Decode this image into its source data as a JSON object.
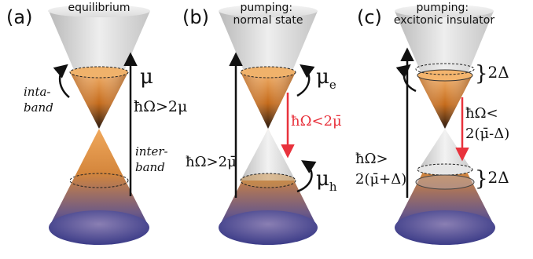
{
  "colors": {
    "upper_cone": "#d6d6d6",
    "lower_cone_orange": "#e39a48",
    "lower_cone_violet": "#4a4a8c",
    "arrow_black": "#111111",
    "arrow_red": "#e8323c"
  },
  "panels": [
    {
      "label": "(a)",
      "title_lines": [
        "equilibrium"
      ],
      "mu_label": "μ",
      "intraband_label_lines": [
        "inta-",
        "band"
      ],
      "interband_label_lines": [
        "inter-",
        "band"
      ],
      "transition_label": "ħΩ>2μ"
    },
    {
      "label": "(b)",
      "title_lines": [
        "pumping:",
        "normal state"
      ],
      "mu_e_label": "μ",
      "mu_e_sub": "e",
      "mu_h_label": "μ",
      "mu_h_sub": "h",
      "red_label": "ħΩ<2μ̄",
      "black_label": "ħΩ>2μ̄"
    },
    {
      "label": "(c)",
      "title_lines": [
        "pumping:",
        "excitonic insulator"
      ],
      "gap_top_label": "2Δ",
      "gap_bottom_label": "2Δ",
      "red_label_lines": [
        "ħΩ<",
        "2(μ̄-Δ)"
      ],
      "black_label_lines": [
        "ħΩ>",
        "2(μ̄+Δ)"
      ]
    }
  ]
}
